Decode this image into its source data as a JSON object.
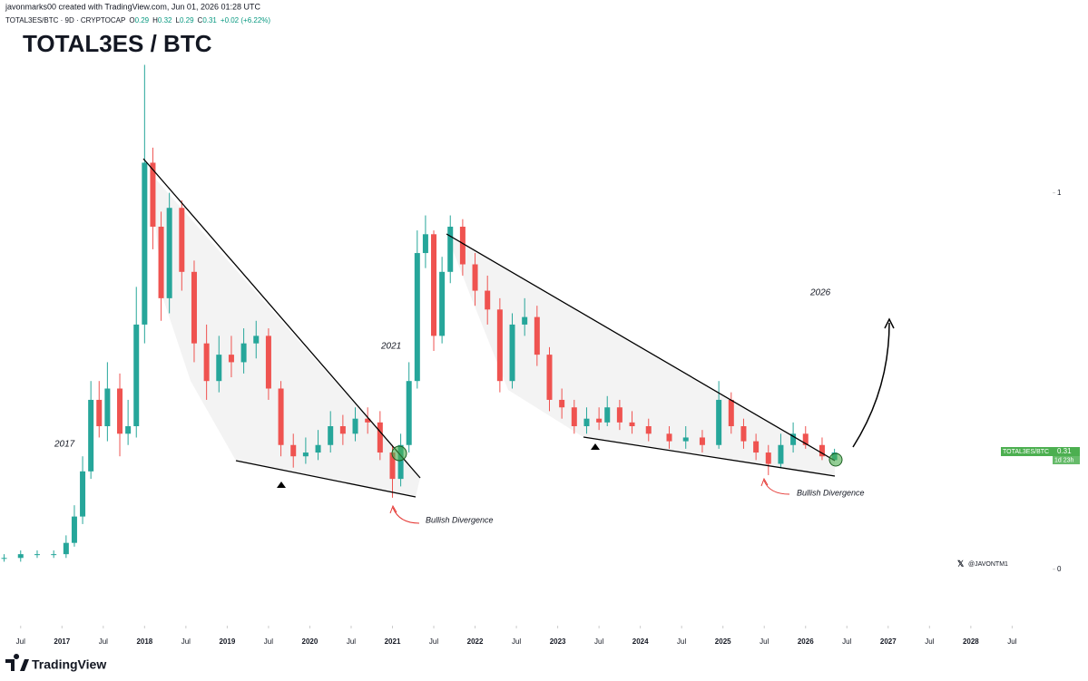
{
  "header": "javonmarks00 created with TradingView.com, Jun 01, 2026 01:28 UTC",
  "symbol": "TOTAL3ES/BTC · 9D · CRYPTOCAP",
  "change": "+0.02 (+6.22%)",
  "watermark": "@JAVONTM1",
  "brand": "TradingView",
  "price_tag": {
    "name": "TOTAL3ES/BTC",
    "countdown": "1d 23h"
  },
  "chart_data": {
    "type": "candlestick",
    "title": "TOTAL3ES / BTC",
    "annotations": [
      "2017",
      "2021",
      "2026",
      "Bullish Divergence",
      "Bullish Divergence"
    ],
    "up_color": "#26a69a",
    "down_color": "#ef5350",
    "x": [
      2016.3,
      2016.5,
      2016.7,
      2016.9,
      2017.05,
      2017.15,
      2017.25,
      2017.35,
      2017.45,
      2017.55,
      2017.7,
      2017.8,
      2017.9,
      2018.0,
      2018.1,
      2018.2,
      2018.3,
      2018.45,
      2018.6,
      2018.75,
      2018.9,
      2019.05,
      2019.2,
      2019.35,
      2019.5,
      2019.65,
      2019.8,
      2019.95,
      2020.1,
      2020.25,
      2020.4,
      2020.55,
      2020.7,
      2020.85,
      2021.0,
      2021.1,
      2021.2,
      2021.3,
      2021.4,
      2021.5,
      2021.6,
      2021.7,
      2021.85,
      2022.0,
      2022.15,
      2022.3,
      2022.45,
      2022.6,
      2022.75,
      2022.9,
      2023.05,
      2023.2,
      2023.35,
      2023.5,
      2023.6,
      2023.75,
      2023.9,
      2024.1,
      2024.35,
      2024.55,
      2024.75,
      2024.95,
      2025.1,
      2025.25,
      2025.4,
      2025.55,
      2025.7,
      2025.85,
      2026.0,
      2026.2,
      2026.35
    ],
    "open": [
      0.03,
      0.03,
      0.04,
      0.04,
      0.04,
      0.07,
      0.14,
      0.26,
      0.45,
      0.38,
      0.48,
      0.36,
      0.38,
      0.65,
      1.08,
      0.91,
      0.72,
      0.96,
      0.79,
      0.6,
      0.5,
      0.57,
      0.55,
      0.6,
      0.62,
      0.48,
      0.33,
      0.3,
      0.31,
      0.33,
      0.38,
      0.36,
      0.4,
      0.39,
      0.31,
      0.24,
      0.33,
      0.5,
      0.84,
      0.89,
      0.62,
      0.79,
      0.91,
      0.81,
      0.74,
      0.69,
      0.5,
      0.65,
      0.67,
      0.57,
      0.45,
      0.43,
      0.38,
      0.4,
      0.39,
      0.43,
      0.39,
      0.38,
      0.36,
      0.34,
      0.35,
      0.33,
      0.45,
      0.38,
      0.34,
      0.31,
      0.28,
      0.33,
      0.36,
      0.33,
      0.29
    ],
    "high": [
      0.04,
      0.05,
      0.05,
      0.05,
      0.09,
      0.17,
      0.3,
      0.5,
      0.5,
      0.55,
      0.52,
      0.45,
      0.75,
      1.34,
      1.12,
      0.95,
      1.0,
      0.98,
      0.82,
      0.65,
      0.62,
      0.62,
      0.64,
      0.66,
      0.64,
      0.5,
      0.36,
      0.35,
      0.37,
      0.42,
      0.41,
      0.43,
      0.43,
      0.42,
      0.33,
      0.36,
      0.55,
      0.9,
      0.94,
      0.9,
      0.83,
      0.94,
      0.93,
      0.84,
      0.78,
      0.72,
      0.68,
      0.72,
      0.7,
      0.59,
      0.48,
      0.45,
      0.43,
      0.43,
      0.46,
      0.45,
      0.42,
      0.4,
      0.38,
      0.38,
      0.37,
      0.5,
      0.47,
      0.4,
      0.36,
      0.33,
      0.36,
      0.39,
      0.38,
      0.35,
      0.32
    ],
    "low": [
      0.02,
      0.02,
      0.03,
      0.03,
      0.03,
      0.06,
      0.12,
      0.24,
      0.35,
      0.34,
      0.3,
      0.33,
      0.35,
      0.6,
      0.85,
      0.66,
      0.68,
      0.74,
      0.55,
      0.45,
      0.47,
      0.51,
      0.52,
      0.56,
      0.45,
      0.3,
      0.27,
      0.28,
      0.29,
      0.31,
      0.33,
      0.34,
      0.36,
      0.29,
      0.19,
      0.22,
      0.31,
      0.48,
      0.8,
      0.58,
      0.6,
      0.76,
      0.78,
      0.7,
      0.65,
      0.47,
      0.48,
      0.62,
      0.54,
      0.42,
      0.4,
      0.36,
      0.36,
      0.37,
      0.38,
      0.37,
      0.36,
      0.34,
      0.32,
      0.32,
      0.31,
      0.32,
      0.36,
      0.32,
      0.29,
      0.25,
      0.27,
      0.31,
      0.32,
      0.29,
      0.29
    ],
    "close": [
      0.03,
      0.04,
      0.04,
      0.04,
      0.07,
      0.14,
      0.26,
      0.45,
      0.38,
      0.48,
      0.36,
      0.38,
      0.65,
      1.08,
      0.91,
      0.72,
      0.96,
      0.79,
      0.6,
      0.5,
      0.57,
      0.55,
      0.6,
      0.62,
      0.48,
      0.33,
      0.3,
      0.31,
      0.33,
      0.38,
      0.36,
      0.4,
      0.39,
      0.31,
      0.24,
      0.33,
      0.5,
      0.84,
      0.89,
      0.62,
      0.79,
      0.91,
      0.81,
      0.74,
      0.69,
      0.5,
      0.65,
      0.67,
      0.57,
      0.45,
      0.43,
      0.38,
      0.4,
      0.39,
      0.43,
      0.39,
      0.38,
      0.36,
      0.34,
      0.35,
      0.33,
      0.45,
      0.38,
      0.34,
      0.31,
      0.28,
      0.33,
      0.36,
      0.33,
      0.3,
      0.31
    ],
    "xlim": [
      2016.25,
      2028.99
    ],
    "xticks": [
      {
        "value": 2016.5,
        "label": "Jul"
      },
      2017,
      {
        "value": 2017.5,
        "label": "Jul"
      },
      2018,
      {
        "value": 2018.5,
        "label": "Jul"
      },
      2019,
      {
        "value": 2019.5,
        "label": "Jul"
      },
      2020,
      {
        "value": 2020.5,
        "label": "Jul"
      },
      2021,
      {
        "value": 2021.5,
        "label": "Jul"
      },
      2022,
      {
        "value": 2022.5,
        "label": "Jul"
      },
      2023,
      {
        "value": 2023.5,
        "label": "Jul"
      },
      2024,
      {
        "value": 2024.5,
        "label": "Jul"
      },
      2025,
      {
        "value": 2025.5,
        "label": "Jul"
      },
      2026,
      {
        "value": 2026.5,
        "label": "Jul"
      },
      2027,
      {
        "value": 2027.5,
        "label": "Jul"
      },
      2028,
      {
        "value": 2028.5,
        "label": "Jul"
      }
    ],
    "ylim": [
      -0.15,
      1.44
    ],
    "yticks": [
      0,
      1
    ]
  }
}
